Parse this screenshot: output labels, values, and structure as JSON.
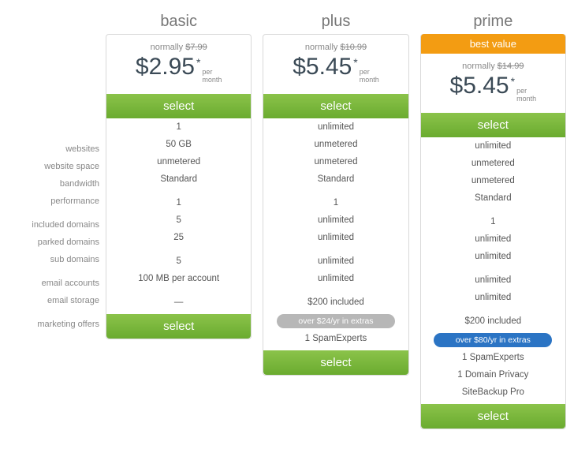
{
  "feature_labels": [
    "websites",
    "website space",
    "bandwidth",
    "performance",
    "included domains",
    "parked domains",
    "sub domains",
    "email accounts",
    "email storage",
    "marketing offers"
  ],
  "select_label": "select",
  "per_label_top": "per",
  "per_label_bottom": "month",
  "normally_prefix": "normally",
  "plans": [
    {
      "name": "basic",
      "badge": null,
      "normal_price": "$7.99",
      "price": "$2.95",
      "features": [
        "1",
        "50 GB",
        "unmetered",
        "Standard",
        "1",
        "5",
        "25",
        "5",
        "100 MB per account",
        "—"
      ],
      "extras_pill": null,
      "extras_pill_style": null,
      "extras": []
    },
    {
      "name": "plus",
      "badge": null,
      "normal_price": "$10.99",
      "price": "$5.45",
      "features": [
        "unlimited",
        "unmetered",
        "unmetered",
        "Standard",
        "1",
        "unlimited",
        "unlimited",
        "unlimited",
        "unlimited",
        "$200 included"
      ],
      "extras_pill": "over $24/yr in extras",
      "extras_pill_style": "gray",
      "extras": [
        "1 SpamExperts"
      ]
    },
    {
      "name": "prime",
      "badge": "best value",
      "normal_price": "$14.99",
      "price": "$5.45",
      "features": [
        "unlimited",
        "unmetered",
        "unmetered",
        "Standard",
        "1",
        "unlimited",
        "unlimited",
        "unlimited",
        "unlimited",
        "$200 included"
      ],
      "extras_pill": "over $80/yr in extras",
      "extras_pill_style": "blue",
      "extras": [
        "1 SpamExperts",
        "1 Domain Privacy",
        "SiteBackup Pro"
      ]
    }
  ],
  "colors": {
    "badge_bg": "#f39c12",
    "select_gradient_top": "#8bc34a",
    "select_gradient_bottom": "#6aab2f",
    "pill_gray": "#b7b7b7",
    "pill_blue": "#2b74c4",
    "border": "#d9d9d9"
  }
}
